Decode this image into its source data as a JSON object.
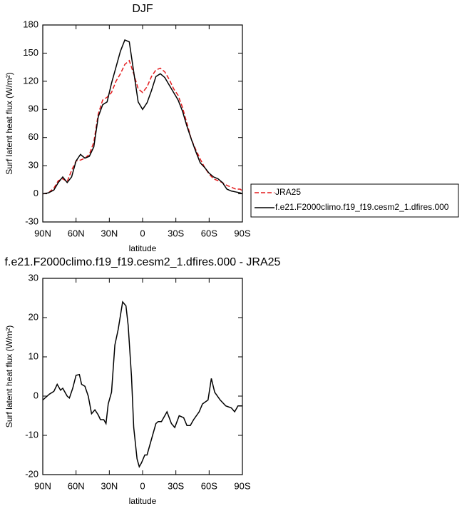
{
  "chart_data": [
    {
      "type": "line",
      "title": "DJF",
      "xlabel": "latitude",
      "ylabel": "Surf latent heat flux (W/m²)",
      "xlim": [
        90,
        -90
      ],
      "xticks": [
        {
          "value": 90,
          "label": "90N"
        },
        {
          "value": 60,
          "label": "60N"
        },
        {
          "value": 30,
          "label": "30N"
        },
        0,
        {
          "value": -30,
          "label": "30S"
        },
        {
          "value": -60,
          "label": "60S"
        },
        {
          "value": -90,
          "label": "90S"
        }
      ],
      "ylim": [
        -30,
        180
      ],
      "yticks": [
        -30,
        0,
        30,
        60,
        90,
        120,
        150,
        180
      ],
      "legend": "right",
      "x": [
        90,
        85,
        80,
        76,
        72,
        68,
        64,
        60,
        56,
        52,
        48,
        44,
        40,
        36,
        32,
        28,
        24,
        20,
        16,
        12,
        8,
        4,
        0,
        -4,
        -8,
        -12,
        -16,
        -20,
        -24,
        -28,
        -32,
        -36,
        -40,
        -44,
        -48,
        -52,
        -56,
        -60,
        -64,
        -68,
        -72,
        -76,
        -80,
        -84,
        -88,
        -90
      ],
      "series": [
        {
          "name": "JRA25",
          "color": "#e41a1c",
          "dashed": true,
          "values": [
            0,
            1,
            6,
            14,
            16,
            13,
            25,
            35,
            36,
            38,
            42,
            55,
            85,
            100,
            103,
            108,
            120,
            128,
            138,
            142,
            128,
            112,
            108,
            114,
            125,
            132,
            134,
            130,
            122,
            112,
            105,
            92,
            75,
            58,
            47,
            37,
            28,
            21,
            16,
            14,
            12,
            9,
            7,
            5,
            5,
            3
          ]
        },
        {
          "name": "f.e21.F2000climo.f19_f19.cesm2_1.dfires.000",
          "color": "#000000",
          "dashed": false,
          "values": [
            0,
            1,
            4,
            12,
            18,
            12,
            18,
            35,
            42,
            38,
            40,
            50,
            82,
            95,
            98,
            118,
            135,
            152,
            164,
            162,
            130,
            98,
            90,
            97,
            110,
            125,
            128,
            124,
            116,
            108,
            100,
            88,
            72,
            58,
            45,
            33,
            28,
            22,
            18,
            16,
            12,
            5,
            3,
            2,
            1,
            0
          ]
        }
      ]
    },
    {
      "type": "line",
      "title": "f.e21.F2000climo.f19_f19.cesm2_1.dfires.000 - JRA25",
      "xlabel": "latitude",
      "ylabel": "Surf latent heat flux (W/m²)",
      "xlim": [
        90,
        -90
      ],
      "xticks": [
        {
          "value": 90,
          "label": "90N"
        },
        {
          "value": 60,
          "label": "60N"
        },
        {
          "value": 30,
          "label": "30N"
        },
        0,
        {
          "value": -30,
          "label": "30S"
        },
        {
          "value": -60,
          "label": "60S"
        },
        {
          "value": -90,
          "label": "90S"
        }
      ],
      "ylim": [
        -20,
        30
      ],
      "yticks": [
        -20,
        -10,
        0,
        10,
        20,
        30
      ],
      "x": [
        90,
        84,
        80,
        77,
        74,
        72,
        68,
        66,
        63,
        60,
        57,
        55,
        52,
        49,
        46,
        43,
        40,
        38,
        35,
        33,
        31,
        28,
        25,
        22,
        18,
        15,
        13,
        10,
        8,
        5,
        3,
        1,
        -2,
        -4,
        -6,
        -9,
        -12,
        -14,
        -17,
        -22,
        -26,
        -29,
        -33,
        -37,
        -40,
        -43,
        -46,
        -51,
        -54,
        -59,
        -62,
        -65,
        -70,
        -75,
        -80,
        -83,
        -86,
        -90
      ],
      "series": [
        {
          "color": "#000000",
          "dashed": false,
          "values": [
            -1,
            0.5,
            1.2,
            3,
            1.5,
            2,
            0,
            -0.5,
            2,
            5.3,
            5.5,
            3,
            2.5,
            0,
            -4.5,
            -3.5,
            -4.8,
            -6,
            -6,
            -7,
            -2,
            1,
            13,
            17,
            24,
            23,
            18,
            5,
            -8,
            -16,
            -18,
            -17,
            -15,
            -15,
            -13,
            -10,
            -7,
            -6.5,
            -6.5,
            -4,
            -7,
            -8,
            -5,
            -5.5,
            -7.5,
            -7.5,
            -6,
            -4,
            -2,
            -1,
            4.5,
            1,
            -1,
            -2.5,
            -3,
            -4,
            -2.5,
            -2.5
          ]
        }
      ]
    }
  ]
}
